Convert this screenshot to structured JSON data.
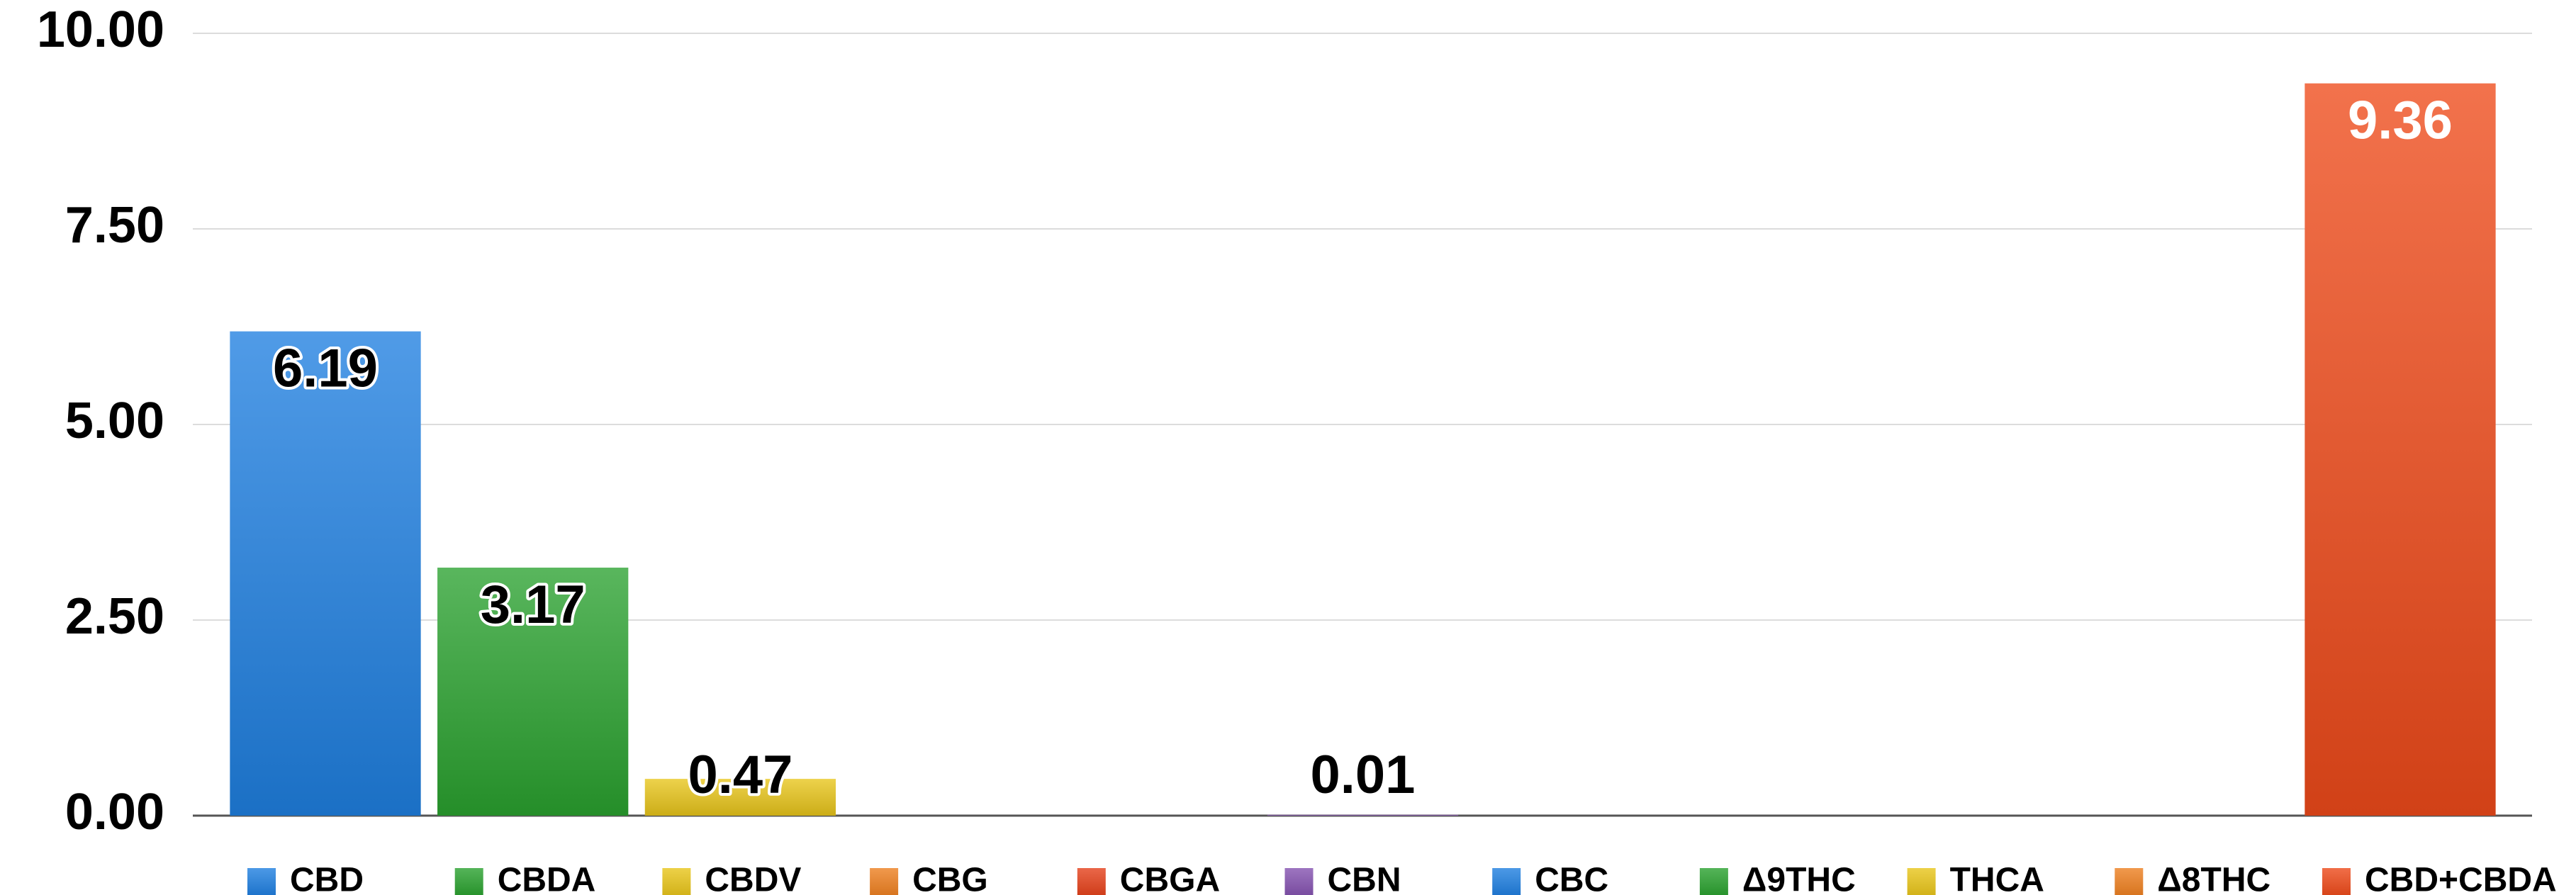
{
  "chart_data": {
    "type": "bar",
    "categories": [
      "CBD",
      "CBDA",
      "CBDV",
      "CBG",
      "CBGA",
      "CBN",
      "CBC",
      "Δ9THC",
      "THCA",
      "Δ8THC",
      "CBD+CBDA"
    ],
    "values": [
      6.19,
      3.17,
      0.47,
      null,
      null,
      0.01,
      null,
      null,
      null,
      null,
      9.36
    ],
    "colors": [
      "#1f7fe0",
      "#2aa12f",
      "#e8c51a",
      "#ee8020",
      "#e5411b",
      "#8452b0",
      "#1f7fe0",
      "#2aa12f",
      "#e8c51a",
      "#ee8020",
      "#ee4a1a"
    ],
    "label_colors": [
      "#000000",
      "#000000",
      "#000000",
      "#000000",
      "#000000",
      "#000000",
      "#000000",
      "#000000",
      "#000000",
      "#000000",
      "#ffffff"
    ],
    "ylim": [
      0,
      10
    ],
    "yticks": [
      {
        "value": 0,
        "label": "0.00"
      },
      {
        "value": 2.5,
        "label": "2.50"
      },
      {
        "value": 5,
        "label": "5.00"
      },
      {
        "value": 7.5,
        "label": "7.50"
      },
      {
        "value": 10,
        "label": "10.00"
      }
    ],
    "grid": true
  }
}
